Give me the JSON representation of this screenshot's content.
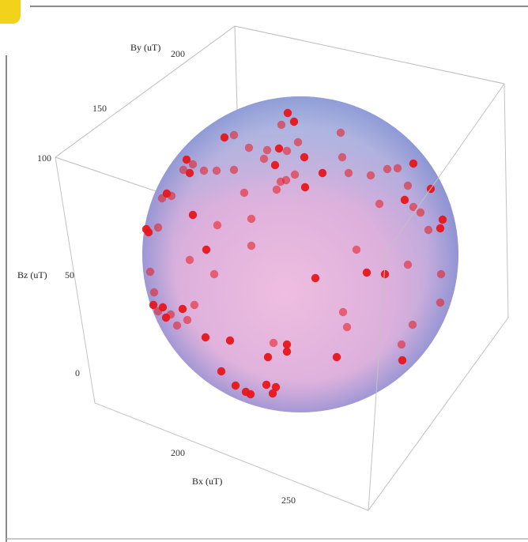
{
  "chart_data": {
    "type": "scatter",
    "dimensions": 3,
    "title": "",
    "xlabel": "Bx (uT)",
    "ylabel": "By (uT)",
    "zlabel": "Bz (uT)",
    "x_ticks": [
      "200",
      "250"
    ],
    "y_ticks": [
      "150",
      "200"
    ],
    "z_ticks": [
      "0",
      "50",
      "100"
    ],
    "fitted_surface": "sphere",
    "point_color": "#e8161b",
    "sphere_color_top": "#a9bde3",
    "sphere_color_center": "#eab6dc",
    "grid": false
  }
}
